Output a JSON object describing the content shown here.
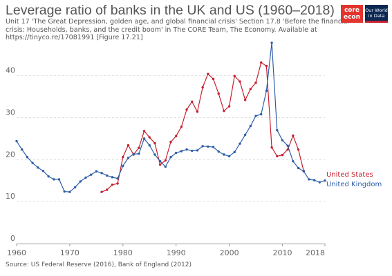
{
  "header": {
    "title": "Leverage ratio of banks in the UK and US (1960–2018)",
    "subtitle": "Unit 17 'The Great Depression, golden age, and global financial crisis' Section 17.8 'Before the financial crisis: Households, banks, and the credit boom' in The CORE Team, The Economy. Available at https://tinyco.re/17081991 [Figure 17.21]"
  },
  "logos": {
    "core_top": "core",
    "core_bottom": "econ",
    "owid_line1": "Our World",
    "owid_line2": "in Data"
  },
  "footer": {
    "source": "Source: US Federal Reserve (2016), Bank of England (2012)"
  },
  "chart_data": {
    "type": "line",
    "title": "Leverage ratio of banks in the UK and US (1960–2018)",
    "xlabel": "",
    "ylabel": "",
    "xlim": [
      1960,
      2018
    ],
    "ylim": [
      0,
      47
    ],
    "x_ticks": [
      1960,
      1970,
      1980,
      1990,
      2000,
      2010,
      2018
    ],
    "y_ticks": [
      0,
      10,
      20,
      30,
      40
    ],
    "grid": "horizontal dashed",
    "legend": "right end of lines",
    "series": [
      {
        "name": "United States",
        "color": "#c6202e",
        "points": [
          [
            1976,
            12.3
          ],
          [
            1977,
            12.8
          ],
          [
            1978,
            14.0
          ],
          [
            1979,
            14.3
          ],
          [
            1980,
            20.6
          ],
          [
            1981,
            23.4
          ],
          [
            1982,
            21.2
          ],
          [
            1983,
            22.8
          ],
          [
            1984,
            26.8
          ],
          [
            1985,
            25.3
          ],
          [
            1986,
            23.9
          ],
          [
            1987,
            18.8
          ],
          [
            1988,
            19.8
          ],
          [
            1989,
            24.2
          ],
          [
            1990,
            25.6
          ],
          [
            1991,
            27.8
          ],
          [
            1992,
            31.9
          ],
          [
            1993,
            33.8
          ],
          [
            1994,
            31.4
          ],
          [
            1995,
            37.2
          ],
          [
            1996,
            40.4
          ],
          [
            1997,
            39.2
          ],
          [
            1998,
            35.7
          ],
          [
            1999,
            31.6
          ],
          [
            2000,
            32.7
          ],
          [
            2001,
            39.9
          ],
          [
            2002,
            38.6
          ],
          [
            2003,
            34.2
          ],
          [
            2004,
            36.8
          ],
          [
            2005,
            38.3
          ],
          [
            2006,
            43.1
          ],
          [
            2007,
            42.3
          ],
          [
            2008,
            22.9
          ],
          [
            2009,
            20.8
          ],
          [
            2010,
            21.1
          ],
          [
            2011,
            22.4
          ],
          [
            2012,
            25.7
          ],
          [
            2013,
            22.4
          ],
          [
            2014,
            17.3
          ]
        ]
      },
      {
        "name": "United Kingdom",
        "color": "#2d5ea8",
        "points": [
          [
            1960,
            24.4
          ],
          [
            1961,
            22.4
          ],
          [
            1962,
            20.6
          ],
          [
            1963,
            19.2
          ],
          [
            1964,
            18.1
          ],
          [
            1965,
            17.3
          ],
          [
            1966,
            16.0
          ],
          [
            1967,
            15.3
          ],
          [
            1968,
            15.3
          ],
          [
            1969,
            12.4
          ],
          [
            1970,
            12.3
          ],
          [
            1971,
            13.4
          ],
          [
            1972,
            14.8
          ],
          [
            1973,
            15.7
          ],
          [
            1974,
            16.4
          ],
          [
            1975,
            17.2
          ],
          [
            1976,
            16.8
          ],
          [
            1977,
            16.2
          ],
          [
            1978,
            15.8
          ],
          [
            1979,
            15.5
          ],
          [
            1980,
            18.5
          ],
          [
            1981,
            20.4
          ],
          [
            1982,
            21.3
          ],
          [
            1983,
            21.4
          ],
          [
            1984,
            25.0
          ],
          [
            1985,
            23.4
          ],
          [
            1986,
            21.2
          ],
          [
            1987,
            19.6
          ],
          [
            1988,
            18.3
          ],
          [
            1989,
            20.6
          ],
          [
            1990,
            21.6
          ],
          [
            1991,
            22.0
          ],
          [
            1992,
            22.4
          ],
          [
            1993,
            22.1
          ],
          [
            1994,
            22.2
          ],
          [
            1995,
            23.2
          ],
          [
            1996,
            23.1
          ],
          [
            1997,
            23.0
          ],
          [
            1998,
            21.9
          ],
          [
            1999,
            21.2
          ],
          [
            2000,
            20.8
          ],
          [
            2001,
            21.8
          ],
          [
            2002,
            23.8
          ],
          [
            2003,
            25.9
          ],
          [
            2004,
            28.0
          ],
          [
            2005,
            30.4
          ],
          [
            2006,
            30.8
          ],
          [
            2007,
            36.4
          ],
          [
            2008,
            47.8
          ],
          [
            2009,
            27.0
          ],
          [
            2010,
            24.6
          ],
          [
            2011,
            23.3
          ],
          [
            2012,
            19.6
          ],
          [
            2013,
            18.0
          ],
          [
            2014,
            17.2
          ],
          [
            2015,
            15.3
          ],
          [
            2016,
            15.1
          ],
          [
            2017,
            14.6
          ],
          [
            2018,
            15.0
          ]
        ]
      }
    ]
  }
}
